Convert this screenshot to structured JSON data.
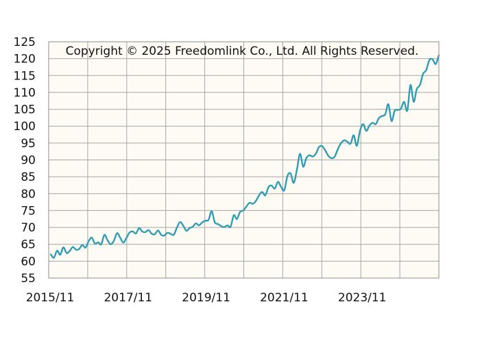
{
  "chart_data": {
    "type": "line",
    "title": "",
    "xlabel": "",
    "ylabel": "",
    "annotation": "Copyright © 2025 Freedomlink Co., Ltd. All Rights Reserved.",
    "x_tick_labels": [
      "2015/11",
      "2017/11",
      "2019/11",
      "2021/11",
      "2023/11"
    ],
    "y_ticks": [
      55,
      60,
      65,
      70,
      75,
      80,
      85,
      90,
      95,
      100,
      105,
      110,
      115,
      120,
      125
    ],
    "ylim": [
      55,
      125
    ],
    "x_range": [
      "2015/11",
      "2025/10"
    ],
    "grid": true,
    "colors": {
      "line": "#2e9db3",
      "plot_background": "#fdfbf3",
      "grid": "#a6a6a6",
      "frame": "#8c8c8c"
    },
    "series": [
      {
        "values": [
          62.0,
          61.0,
          63.1,
          61.9,
          64.1,
          62.4,
          63.0,
          64.2,
          63.4,
          63.6,
          64.8,
          64.0,
          65.9,
          67.0,
          65.2,
          65.6,
          65.0,
          67.8,
          66.2,
          65.0,
          66.0,
          68.3,
          67.0,
          65.5,
          66.9,
          68.5,
          68.8,
          68.2,
          69.8,
          68.8,
          68.6,
          69.2,
          68.1,
          68.0,
          69.1,
          67.8,
          67.6,
          68.4,
          68.1,
          67.8,
          70.0,
          71.6,
          70.5,
          69.0,
          69.8,
          70.2,
          71.2,
          70.6,
          71.5,
          72.0,
          72.2,
          74.8,
          71.5,
          71.0,
          70.4,
          70.1,
          70.6,
          70.2,
          73.6,
          72.5,
          74.6,
          75.0,
          76.2,
          77.3,
          77.0,
          77.8,
          79.5,
          80.5,
          79.5,
          81.9,
          82.4,
          81.5,
          83.5,
          82.0,
          81.0,
          85.2,
          86.0,
          83.2,
          87.0,
          91.8,
          88.0,
          90.5,
          91.4,
          91.0,
          91.8,
          93.8,
          94.1,
          92.8,
          91.2,
          90.5,
          91.0,
          93.2,
          95.0,
          95.8,
          95.4,
          94.8,
          97.3,
          94.2,
          98.6,
          100.6,
          98.6,
          100.2,
          101.0,
          100.6,
          102.4,
          103.0,
          103.5,
          106.5,
          101.5,
          104.6,
          104.8,
          105.2,
          107.2,
          104.6,
          112.2,
          107.2,
          111.0,
          112.2,
          115.5,
          116.6,
          119.6,
          119.8,
          118.4,
          121.0
        ]
      }
    ]
  }
}
